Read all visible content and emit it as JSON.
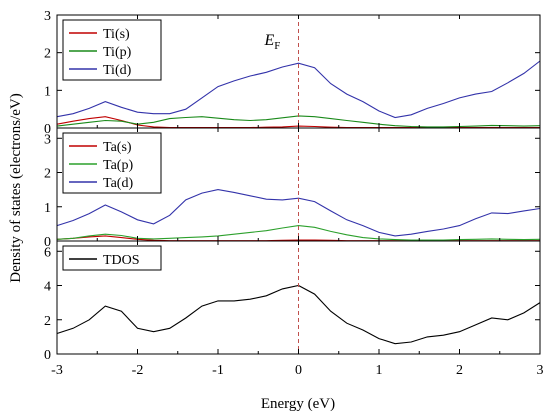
{
  "chart_data": {
    "type": "line",
    "xlabel": "Energy (eV)",
    "ylabel": "Density of states (electrons/eV)",
    "xlim": [
      -3,
      3
    ],
    "xticks": [
      "-3",
      "-2",
      "-1",
      "0",
      "1",
      "2",
      "3"
    ],
    "fermi_label_main": "E",
    "fermi_label_sub": "F",
    "fermi_color": "#c0504d",
    "panels": [
      {
        "ylim": [
          0,
          3
        ],
        "yticks": [
          0,
          1,
          2,
          3
        ],
        "legend_position": "top-left",
        "series": [
          {
            "name": "Ti(s)",
            "color": "#c00000",
            "x": [
              -3,
              -2.8,
              -2.6,
              -2.4,
              -2.2,
              -2.0,
              -1.8,
              -1.6,
              -1.4,
              -1.2,
              -1.0,
              -0.8,
              -0.6,
              -0.4,
              -0.2,
              0.0,
              0.2,
              0.4,
              0.6,
              0.8,
              1.0,
              1.2,
              1.4,
              1.6,
              1.8,
              2.0,
              2.2,
              2.4,
              2.6,
              2.8,
              3.0
            ],
            "y": [
              0.1,
              0.18,
              0.25,
              0.3,
              0.2,
              0.08,
              0.03,
              0.01,
              0.01,
              0.01,
              0.01,
              0.01,
              0.01,
              0.02,
              0.03,
              0.05,
              0.04,
              0.02,
              0.01,
              0.01,
              0.01,
              0.01,
              0.01,
              0.01,
              0.01,
              0.01,
              0.01,
              0.01,
              0.01,
              0.01,
              0.01
            ]
          },
          {
            "name": "Ti(p)",
            "color": "#1a8a1a",
            "x": [
              -3,
              -2.8,
              -2.6,
              -2.4,
              -2.2,
              -2.0,
              -1.8,
              -1.6,
              -1.4,
              -1.2,
              -1.0,
              -0.8,
              -0.6,
              -0.4,
              -0.2,
              0.0,
              0.2,
              0.4,
              0.6,
              0.8,
              1.0,
              1.2,
              1.4,
              1.6,
              1.8,
              2.0,
              2.2,
              2.4,
              2.6,
              2.8,
              3.0
            ],
            "y": [
              0.05,
              0.1,
              0.15,
              0.2,
              0.18,
              0.1,
              0.15,
              0.25,
              0.28,
              0.3,
              0.26,
              0.22,
              0.2,
              0.22,
              0.27,
              0.32,
              0.3,
              0.25,
              0.2,
              0.15,
              0.1,
              0.06,
              0.04,
              0.03,
              0.03,
              0.04,
              0.05,
              0.07,
              0.06,
              0.05,
              0.06
            ]
          },
          {
            "name": "Ti(d)",
            "color": "#3333aa",
            "x": [
              -3,
              -2.8,
              -2.6,
              -2.4,
              -2.2,
              -2.0,
              -1.8,
              -1.6,
              -1.4,
              -1.2,
              -1.0,
              -0.8,
              -0.6,
              -0.4,
              -0.2,
              0.0,
              0.2,
              0.4,
              0.6,
              0.8,
              1.0,
              1.2,
              1.4,
              1.6,
              1.8,
              2.0,
              2.2,
              2.4,
              2.6,
              2.8,
              3.0
            ],
            "y": [
              0.3,
              0.38,
              0.52,
              0.7,
              0.55,
              0.42,
              0.38,
              0.38,
              0.5,
              0.8,
              1.1,
              1.25,
              1.38,
              1.48,
              1.62,
              1.72,
              1.6,
              1.18,
              0.9,
              0.7,
              0.45,
              0.28,
              0.35,
              0.52,
              0.65,
              0.8,
              0.9,
              0.97,
              1.2,
              1.45,
              1.78
            ]
          }
        ]
      },
      {
        "ylim": [
          0,
          3.3
        ],
        "yticks": [
          0,
          1,
          2,
          3
        ],
        "legend_position": "top-left",
        "series": [
          {
            "name": "Ta(s)",
            "color": "#c00000",
            "x": [
              -3,
              -2.8,
              -2.6,
              -2.4,
              -2.2,
              -2.0,
              -1.8,
              -1.6,
              -1.4,
              -1.2,
              -1.0,
              -0.8,
              -0.6,
              -0.4,
              -0.2,
              0.0,
              0.2,
              0.4,
              0.6,
              0.8,
              1.0,
              1.2,
              1.4,
              1.6,
              1.8,
              2.0,
              2.2,
              2.4,
              2.6,
              2.8,
              3.0
            ],
            "y": [
              0.05,
              0.08,
              0.12,
              0.15,
              0.1,
              0.05,
              0.02,
              0.01,
              0.01,
              0.01,
              0.01,
              0.01,
              0.01,
              0.01,
              0.02,
              0.03,
              0.03,
              0.02,
              0.01,
              0.01,
              0.01,
              0.01,
              0.01,
              0.01,
              0.01,
              0.01,
              0.01,
              0.01,
              0.01,
              0.01,
              0.01
            ]
          },
          {
            "name": "Ta(p)",
            "color": "#2ca02c",
            "x": [
              -3,
              -2.8,
              -2.6,
              -2.4,
              -2.2,
              -2.0,
              -1.8,
              -1.6,
              -1.4,
              -1.2,
              -1.0,
              -0.8,
              -0.6,
              -0.4,
              -0.2,
              0.0,
              0.2,
              0.4,
              0.6,
              0.8,
              1.0,
              1.2,
              1.4,
              1.6,
              1.8,
              2.0,
              2.2,
              2.4,
              2.6,
              2.8,
              3.0
            ],
            "y": [
              0.05,
              0.08,
              0.15,
              0.2,
              0.16,
              0.08,
              0.06,
              0.08,
              0.1,
              0.12,
              0.15,
              0.2,
              0.25,
              0.3,
              0.38,
              0.45,
              0.4,
              0.28,
              0.18,
              0.1,
              0.06,
              0.04,
              0.03,
              0.03,
              0.03,
              0.04,
              0.05,
              0.06,
              0.05,
              0.04,
              0.05
            ]
          },
          {
            "name": "Ta(d)",
            "color": "#3333aa",
            "x": [
              -3,
              -2.8,
              -2.6,
              -2.4,
              -2.2,
              -2.0,
              -1.8,
              -1.6,
              -1.4,
              -1.2,
              -1.0,
              -0.8,
              -0.6,
              -0.4,
              -0.2,
              0.0,
              0.2,
              0.4,
              0.6,
              0.8,
              1.0,
              1.2,
              1.4,
              1.6,
              1.8,
              2.0,
              2.2,
              2.4,
              2.6,
              2.8,
              3.0
            ],
            "y": [
              0.45,
              0.6,
              0.8,
              1.05,
              0.85,
              0.62,
              0.5,
              0.75,
              1.2,
              1.4,
              1.5,
              1.42,
              1.32,
              1.22,
              1.2,
              1.25,
              1.15,
              0.88,
              0.62,
              0.45,
              0.25,
              0.15,
              0.2,
              0.28,
              0.35,
              0.45,
              0.65,
              0.82,
              0.8,
              0.88,
              0.95
            ]
          }
        ]
      },
      {
        "ylim": [
          0,
          6.6
        ],
        "yticks": [
          0,
          2,
          4,
          6
        ],
        "legend_position": "top-left",
        "series": [
          {
            "name": "TDOS",
            "color": "#000000",
            "x": [
              -3,
              -2.8,
              -2.6,
              -2.4,
              -2.2,
              -2.0,
              -1.8,
              -1.6,
              -1.4,
              -1.2,
              -1.0,
              -0.8,
              -0.6,
              -0.4,
              -0.2,
              0.0,
              0.2,
              0.4,
              0.6,
              0.8,
              1.0,
              1.2,
              1.4,
              1.6,
              1.8,
              2.0,
              2.2,
              2.4,
              2.6,
              2.8,
              3.0
            ],
            "y": [
              1.2,
              1.5,
              2.0,
              2.8,
              2.5,
              1.5,
              1.3,
              1.5,
              2.1,
              2.8,
              3.1,
              3.1,
              3.2,
              3.4,
              3.8,
              4.0,
              3.5,
              2.5,
              1.8,
              1.4,
              0.9,
              0.6,
              0.7,
              1.0,
              1.1,
              1.3,
              1.7,
              2.1,
              2.0,
              2.4,
              3.0
            ]
          }
        ]
      }
    ]
  }
}
